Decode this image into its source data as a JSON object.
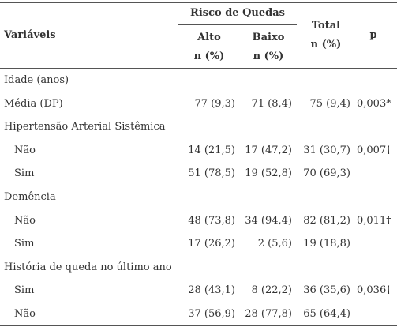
{
  "header": {
    "group": "Risco de Quedas",
    "variables": "Variáveis",
    "alto": "Alto",
    "baixo": "Baixo",
    "alto_unit": "n (%)",
    "baixo_unit": "n (%)",
    "total": "Total",
    "total_unit": "n (%)",
    "p": "p"
  },
  "table": {
    "sections": [
      {
        "title": "Idade (anos)",
        "rows": [
          {
            "label": "Média (DP)",
            "values": [
              "77 (9,3)",
              "71 (8,4)",
              "75 (9,4)",
              "0,003*"
            ]
          }
        ]
      },
      {
        "title": "Hipertensão Arterial Sistêmica",
        "rows": [
          {
            "label": "Não",
            "values": [
              "14 (21,5)",
              "17 (47,2)",
              "31 (30,7)",
              "0,007†"
            ]
          },
          {
            "label": "Sim",
            "values": [
              "51 (78,5)",
              "19 (52,8)",
              "70 (69,3)"
            ]
          }
        ]
      },
      {
        "title": "Demência",
        "rows": [
          {
            "label": "Não",
            "values": [
              "48 (73,8)",
              "34 (94,4)",
              "82 (81,2)",
              "0,011†"
            ]
          },
          {
            "label": "Sim",
            "values": [
              "17 (26,2)",
              "2 (5,6)",
              "19 (18,8)"
            ]
          }
        ]
      },
      {
        "title": "História de queda no último ano",
        "rows": [
          {
            "label": "Sim",
            "values": [
              "28 (43,1)",
              "8 (22,2)",
              "36 (35,6)",
              "0,036†"
            ]
          },
          {
            "label": "Não",
            "values": [
              "37 (56,9)",
              "28 (77,8)",
              "65 (64,4)"
            ]
          }
        ]
      }
    ]
  }
}
